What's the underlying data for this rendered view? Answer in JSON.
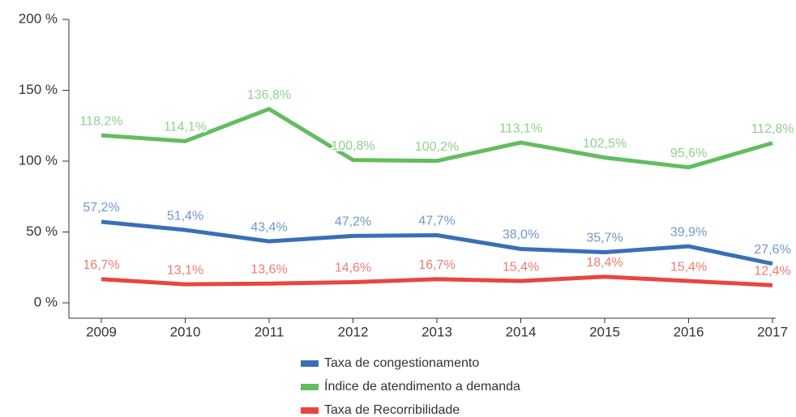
{
  "chart_data": {
    "type": "line",
    "categories": [
      "2009",
      "2010",
      "2011",
      "2012",
      "2013",
      "2014",
      "2015",
      "2016",
      "2017"
    ],
    "ylim": [
      0,
      200
    ],
    "yticks": [
      {
        "value": 0,
        "label": "0 %"
      },
      {
        "value": 50,
        "label": "50 %"
      },
      {
        "value": 100,
        "label": "100 %"
      },
      {
        "value": 150,
        "label": "150 %"
      },
      {
        "value": 200,
        "label": "200 %"
      }
    ],
    "series": [
      {
        "name": "Taxa de congestionamento",
        "color": "#3a6fb6",
        "label_color": "#7098cc",
        "values": [
          57.2,
          51.4,
          43.4,
          47.2,
          47.7,
          38.0,
          35.7,
          39.9,
          27.6
        ],
        "value_labels": [
          "57,2%",
          "51,4%",
          "43,4%",
          "47,2%",
          "47,7%",
          "38,0%",
          "35,7%",
          "39,9%",
          "27,6%"
        ]
      },
      {
        "name": "Índice de atendimento a demanda",
        "color": "#62bd5f",
        "label_color": "#8fd18d",
        "values": [
          118.2,
          114.1,
          136.8,
          100.8,
          100.2,
          113.1,
          102.5,
          95.6,
          112.8
        ],
        "value_labels": [
          "118,2%",
          "114,1%",
          "136,8%",
          "100,8%",
          "100,2%",
          "113,1%",
          "102,5%",
          "95,6%",
          "112,8%"
        ]
      },
      {
        "name": "Taxa de Recorribilidade",
        "color": "#e8463f",
        "label_color": "#f07a72",
        "values": [
          16.7,
          13.1,
          13.6,
          14.6,
          16.7,
          15.4,
          18.4,
          15.4,
          12.4
        ],
        "value_labels": [
          "16,7%",
          "13,1%",
          "13,6%",
          "14,6%",
          "16,7%",
          "15,4%",
          "18,4%",
          "15,4%",
          "12,4%"
        ]
      }
    ],
    "legend": "bottom"
  }
}
